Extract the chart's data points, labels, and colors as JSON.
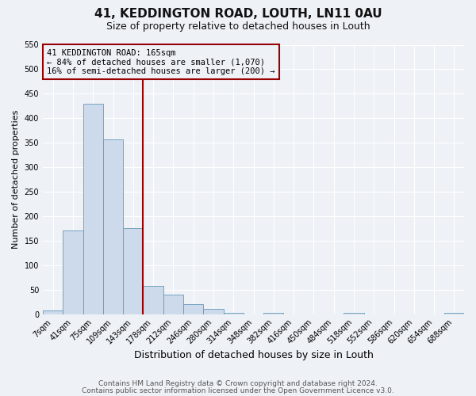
{
  "title": "41, KEDDINGTON ROAD, LOUTH, LN11 0AU",
  "subtitle": "Size of property relative to detached houses in Louth",
  "xlabel": "Distribution of detached houses by size in Louth",
  "ylabel": "Number of detached properties",
  "bar_labels": [
    "7sqm",
    "41sqm",
    "75sqm",
    "109sqm",
    "143sqm",
    "178sqm",
    "212sqm",
    "246sqm",
    "280sqm",
    "314sqm",
    "348sqm",
    "382sqm",
    "416sqm",
    "450sqm",
    "484sqm",
    "518sqm",
    "552sqm",
    "586sqm",
    "620sqm",
    "654sqm",
    "688sqm"
  ],
  "bar_values": [
    8,
    170,
    430,
    356,
    175,
    57,
    40,
    20,
    10,
    3,
    0,
    3,
    0,
    0,
    0,
    2,
    0,
    0,
    0,
    0,
    2
  ],
  "bar_color": "#ccdaeb",
  "bar_edge_color": "#6699bb",
  "ylim": [
    0,
    550
  ],
  "yticks": [
    0,
    50,
    100,
    150,
    200,
    250,
    300,
    350,
    400,
    450,
    500,
    550
  ],
  "vline_x_idx": 5,
  "vline_color": "#990000",
  "annotation_title": "41 KEDDINGTON ROAD: 165sqm",
  "annotation_line1": "← 84% of detached houses are smaller (1,070)",
  "annotation_line2": "16% of semi-detached houses are larger (200) →",
  "annotation_box_color": "#990000",
  "footer_line1": "Contains HM Land Registry data © Crown copyright and database right 2024.",
  "footer_line2": "Contains public sector information licensed under the Open Government Licence v3.0.",
  "background_color": "#eef2f7",
  "grid_color": "#ffffff",
  "title_fontsize": 11,
  "subtitle_fontsize": 9,
  "xlabel_fontsize": 9,
  "ylabel_fontsize": 8,
  "tick_fontsize": 7,
  "annot_fontsize": 7.5,
  "footer_fontsize": 6.5
}
